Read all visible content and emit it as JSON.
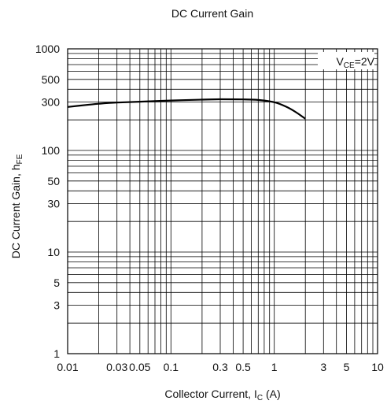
{
  "chart_data": {
    "type": "line",
    "title": "DC Current Gain",
    "xlabel": {
      "main": "Collector Current, I",
      "sub": "C",
      "tail": " (A)"
    },
    "ylabel": {
      "main": "DC Current Gain, h",
      "sub": "FE"
    },
    "annotation": {
      "main": "V",
      "sub": "CE",
      "tail": "=2V"
    },
    "x_scale": "log",
    "y_scale": "log",
    "xlim": [
      0.01,
      10
    ],
    "ylim": [
      1,
      1000
    ],
    "grid": true,
    "x_ticks": [
      {
        "value": 0.01,
        "label": "0.01"
      },
      {
        "value": 0.03,
        "label": "0.03"
      },
      {
        "value": 0.05,
        "label": "0.05"
      },
      {
        "value": 0.1,
        "label": "0.1"
      },
      {
        "value": 0.3,
        "label": "0.3"
      },
      {
        "value": 0.5,
        "label": "0.5"
      },
      {
        "value": 1,
        "label": "1"
      },
      {
        "value": 3,
        "label": "3"
      },
      {
        "value": 5,
        "label": "5"
      },
      {
        "value": 10,
        "label": "10"
      }
    ],
    "y_ticks": [
      {
        "value": 1,
        "label": "1"
      },
      {
        "value": 3,
        "label": "3"
      },
      {
        "value": 5,
        "label": "5"
      },
      {
        "value": 10,
        "label": "10"
      },
      {
        "value": 30,
        "label": "30"
      },
      {
        "value": 50,
        "label": "50"
      },
      {
        "value": 100,
        "label": "100"
      },
      {
        "value": 300,
        "label": "300"
      },
      {
        "value": 500,
        "label": "500"
      },
      {
        "value": 1000,
        "label": "1000"
      }
    ],
    "series": [
      {
        "color": "#000000",
        "x": [
          0.01,
          0.015,
          0.02,
          0.03,
          0.05,
          0.1,
          0.2,
          0.3,
          0.5,
          0.7,
          1.0,
          1.3,
          1.6,
          2.0
        ],
        "y": [
          268,
          280,
          288,
          296,
          302,
          310,
          316,
          319,
          318,
          314,
          298,
          270,
          240,
          205
        ]
      }
    ]
  }
}
